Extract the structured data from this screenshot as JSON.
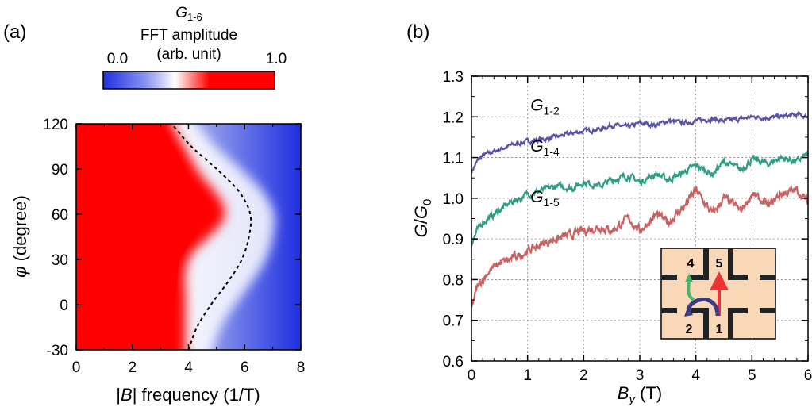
{
  "panel_a": {
    "panel_label": "(a)",
    "colorbar": {
      "title_symbol": "G",
      "title_subscript": "1-6",
      "title_line2": "FFT amplitude",
      "title_line3": "(arb. unit)",
      "min_label": "0.0",
      "max_label": "1.0",
      "colors": [
        "#1f2fe0",
        "#ffffff",
        "#ff0000"
      ]
    },
    "xlabel_prefix": "|",
    "xlabel_symbol": "B",
    "xlabel_suffix": "| frequency (1/T)",
    "ylabel_symbol": "φ",
    "ylabel_text": " (degree)"
  },
  "panel_b": {
    "panel_label": "(b)",
    "ylabel_symbol": "G",
    "ylabel_slash": "/",
    "ylabel_denom": "G",
    "ylabel_denom_sub": "0",
    "xlabel_symbol": "B",
    "xlabel_sub": "y",
    "xlabel_unit": " (T)",
    "inset": {
      "terminal_labels": [
        "4",
        "5",
        "2",
        "1"
      ],
      "fill": "#f9d8b8"
    }
  },
  "chart_data": [
    {
      "type": "heatmap",
      "title": "G1-6 FFT amplitude (arb. unit)",
      "xlabel": "|B| frequency (1/T)",
      "ylabel": "φ (degree)",
      "xlim": [
        0,
        8
      ],
      "ylim": [
        -30,
        120
      ],
      "x_ticks": [
        0,
        2,
        4,
        6,
        8
      ],
      "y_ticks": [
        -30,
        0,
        30,
        60,
        90,
        120
      ],
      "color_range": [
        0.0,
        1.0
      ],
      "boundary_curve": {
        "style": "dashed",
        "phi": [
          -30,
          -15,
          0,
          15,
          30,
          45,
          60,
          75,
          90,
          105,
          120
        ],
        "freq": [
          4.0,
          4.3,
          4.8,
          5.4,
          5.9,
          6.15,
          6.2,
          5.8,
          5.0,
          4.1,
          3.4
        ]
      },
      "high_amplitude_edge": {
        "phi": [
          -30,
          0,
          30,
          60,
          90,
          120
        ],
        "freq": [
          3.9,
          3.9,
          4.0,
          5.3,
          4.3,
          3.4
        ]
      }
    },
    {
      "type": "line",
      "xlabel": "B_y (T)",
      "ylabel": "G/G0",
      "xlim": [
        0,
        6
      ],
      "ylim": [
        0.6,
        1.3
      ],
      "x_ticks": [
        0,
        1,
        2,
        3,
        4,
        5,
        6
      ],
      "y_ticks": [
        0.6,
        0.7,
        0.8,
        0.9,
        1.0,
        1.1,
        1.2,
        1.3
      ],
      "grid": true,
      "series": [
        {
          "name": "G1-2",
          "name_symbol": "G",
          "name_sub": "1-2",
          "color": "#5a53a4",
          "x": [
            0,
            0.1,
            0.2,
            0.3,
            0.5,
            0.7,
            1.0,
            1.3,
            1.5,
            1.8,
            2.0,
            2.3,
            2.5,
            2.8,
            3.0,
            3.3,
            3.5,
            3.8,
            4.0,
            4.3,
            4.5,
            4.8,
            5.0,
            5.3,
            5.5,
            5.8,
            6.0
          ],
          "y": [
            1.065,
            1.09,
            1.105,
            1.11,
            1.12,
            1.13,
            1.14,
            1.145,
            1.15,
            1.16,
            1.165,
            1.17,
            1.18,
            1.175,
            1.185,
            1.18,
            1.19,
            1.185,
            1.19,
            1.195,
            1.19,
            1.195,
            1.2,
            1.198,
            1.2,
            1.205,
            1.2
          ]
        },
        {
          "name": "G1-4",
          "name_symbol": "G",
          "name_sub": "1-4",
          "color": "#2f9e85",
          "x": [
            0,
            0.1,
            0.2,
            0.3,
            0.5,
            0.7,
            1.0,
            1.3,
            1.5,
            1.8,
            2.0,
            2.3,
            2.5,
            2.8,
            3.0,
            3.3,
            3.5,
            3.8,
            4.0,
            4.3,
            4.5,
            4.8,
            5.0,
            5.3,
            5.5,
            5.8,
            6.0
          ],
          "y": [
            0.89,
            0.92,
            0.94,
            0.95,
            0.97,
            0.99,
            1.01,
            1.02,
            1.03,
            1.025,
            1.04,
            1.03,
            1.045,
            1.055,
            1.04,
            1.06,
            1.045,
            1.065,
            1.08,
            1.06,
            1.09,
            1.07,
            1.095,
            1.085,
            1.1,
            1.09,
            1.11
          ]
        },
        {
          "name": "G1-5",
          "name_symbol": "G",
          "name_sub": "1-5",
          "color": "#c96262",
          "x": [
            0,
            0.1,
            0.2,
            0.3,
            0.5,
            0.7,
            1.0,
            1.3,
            1.5,
            1.8,
            2.0,
            2.3,
            2.5,
            2.8,
            3.0,
            3.3,
            3.5,
            3.8,
            4.0,
            4.3,
            4.5,
            4.8,
            5.0,
            5.3,
            5.5,
            5.8,
            6.0
          ],
          "y": [
            0.73,
            0.78,
            0.8,
            0.82,
            0.84,
            0.85,
            0.87,
            0.89,
            0.9,
            0.91,
            0.92,
            0.93,
            0.92,
            0.95,
            0.92,
            0.96,
            0.94,
            0.98,
            1.02,
            0.96,
            1.0,
            0.97,
            1.01,
            0.98,
            1.01,
            1.02,
            0.99
          ]
        }
      ]
    }
  ]
}
